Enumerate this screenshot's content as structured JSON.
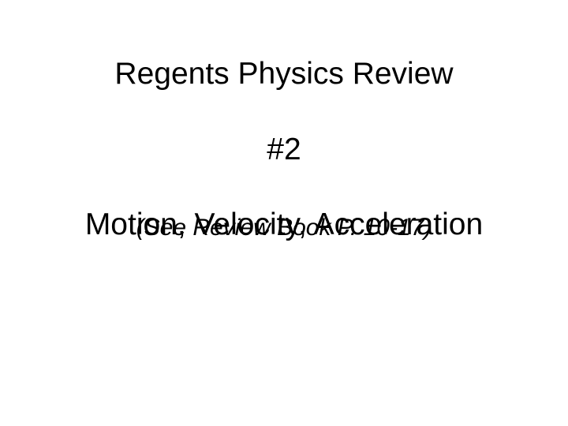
{
  "slide": {
    "title": "Regents Physics Review",
    "number": "#2",
    "subtitle": "Motion, Velocity, Acceleration",
    "overlay": "(See Review Book P. 10-17)"
  },
  "styling": {
    "background_color": "#ffffff",
    "text_color": "#000000",
    "title_fontsize": 39,
    "number_fontsize": 39,
    "subtitle_fontsize": 39,
    "overlay_fontsize": 30,
    "font_family": "Arial"
  }
}
